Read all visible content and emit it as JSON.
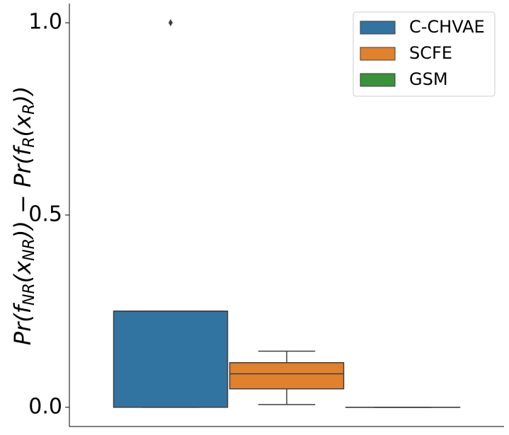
{
  "chart_data": {
    "type": "box",
    "y_label_parts": [
      "Pr(f",
      "NR",
      "(x",
      "NR",
      ")) − Pr(f",
      "R",
      "(x",
      "R",
      "))"
    ],
    "series": [
      {
        "name": "C-CHVAE",
        "color": "#3274a1",
        "min": 0,
        "q1": 0,
        "median": 0.25,
        "q3": 0.25,
        "max": 0.25,
        "outliers": [
          1.0
        ]
      },
      {
        "name": "SCFE",
        "color": "#e1812c",
        "min": 0.007,
        "q1": 0.048,
        "median": 0.087,
        "q3": 0.116,
        "max": 0.146,
        "outliers": []
      },
      {
        "name": "GSM",
        "color": "#3a923a",
        "min": 0,
        "q1": 0,
        "median": 0,
        "q3": 0,
        "max": 0,
        "outliers": []
      }
    ],
    "ylim": [
      -0.05,
      1.05
    ],
    "yticks": [
      {
        "value": 0,
        "label": "0.0"
      },
      0.5,
      {
        "value": 1,
        "label": "1.0"
      }
    ],
    "legend": "upper right"
  }
}
